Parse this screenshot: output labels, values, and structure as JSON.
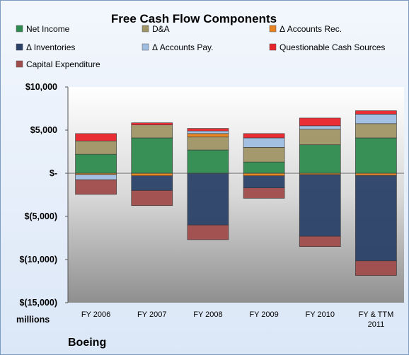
{
  "chart_data": {
    "type": "bar",
    "stacked": true,
    "title": "Free Cash Flow Components",
    "units_label": "millions",
    "company": "Boeing",
    "categories": [
      "FY 2006",
      "FY 2007",
      "FY 2008",
      "FY 2009",
      "FY 2010",
      "FY & TTM 2011"
    ],
    "yticks": [
      "$10,000",
      "$5,000",
      "$-",
      "$(5,000)",
      "$(10,000)",
      "$(15,000)"
    ],
    "ylim": [
      -15000,
      10000
    ],
    "grid": false,
    "legend_position": "top",
    "series": [
      {
        "name": "Net Income",
        "color": "#2e8b4f",
        "values": [
          2200,
          4100,
          2700,
          1300,
          3300,
          4100
        ]
      },
      {
        "name": "D&A",
        "color": "#a09566",
        "values": [
          1550,
          1500,
          1500,
          1700,
          1800,
          1650
        ]
      },
      {
        "name": "Δ Accounts Rec.",
        "color": "#e8821e",
        "values": [
          -150,
          -300,
          400,
          -300,
          -150,
          -250
        ]
      },
      {
        "name": "Δ Inventories",
        "color": "#2a4168",
        "values": [
          0,
          -1700,
          -6000,
          -1400,
          -7150,
          -9900
        ]
      },
      {
        "name": "Δ Accounts Pay.",
        "color": "#9fbde0",
        "values": [
          -600,
          0,
          300,
          1100,
          400,
          1100
        ]
      },
      {
        "name": "Questionable Cash Sources",
        "color": "#e8232a",
        "values": [
          850,
          250,
          300,
          500,
          900,
          400
        ]
      },
      {
        "name": "Capital Expenditure",
        "color": "#a14c4c",
        "values": [
          -1700,
          -1750,
          -1700,
          -1200,
          -1200,
          -1700
        ]
      }
    ]
  }
}
